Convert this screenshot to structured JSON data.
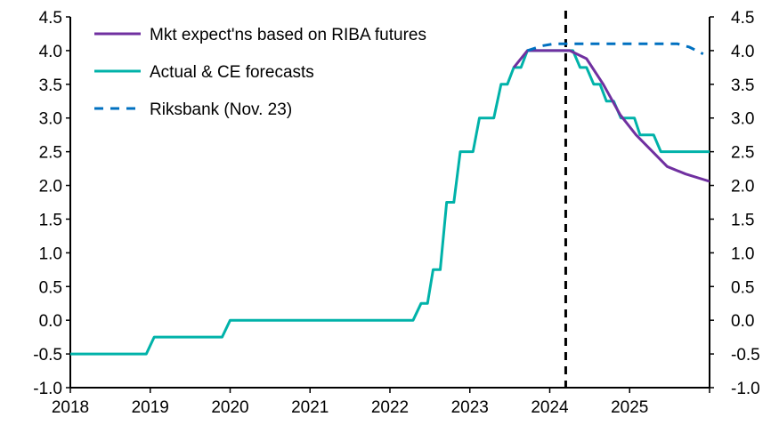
{
  "chart_data": {
    "type": "line",
    "title": "",
    "xlabel": "",
    "ylabel": "",
    "xlim": [
      2018,
      2026
    ],
    "ylim": [
      -1.0,
      4.5
    ],
    "x_ticks": [
      "2018",
      "2019",
      "2020",
      "2021",
      "2022",
      "2023",
      "2024",
      "2025"
    ],
    "y_ticks": [
      "-1.0",
      "-0.5",
      "0.0",
      "0.5",
      "1.0",
      "1.5",
      "2.0",
      "2.5",
      "3.0",
      "3.5",
      "4.0",
      "4.5"
    ],
    "grid": false,
    "legend_position": "top-left",
    "vertical_marker_x": 2024.2,
    "series": [
      {
        "name": "Mkt expect'ns based on RIBA futures",
        "color": "#7030A0",
        "style": "solid",
        "points": [
          [
            2023.55,
            3.75
          ],
          [
            2023.72,
            4.0
          ],
          [
            2024.25,
            4.0
          ],
          [
            2024.46,
            3.88
          ],
          [
            2024.67,
            3.5
          ],
          [
            2024.88,
            3.05
          ],
          [
            2025.08,
            2.75
          ],
          [
            2025.27,
            2.52
          ],
          [
            2025.47,
            2.28
          ],
          [
            2025.7,
            2.17
          ],
          [
            2026.0,
            2.06
          ]
        ]
      },
      {
        "name": "Actual & CE forecasts",
        "color": "#00B2A9",
        "style": "solid",
        "points": [
          [
            2018.0,
            -0.5
          ],
          [
            2018.95,
            -0.5
          ],
          [
            2019.05,
            -0.25
          ],
          [
            2019.9,
            -0.25
          ],
          [
            2020.0,
            0.0
          ],
          [
            2022.29,
            0.0
          ],
          [
            2022.39,
            0.25
          ],
          [
            2022.47,
            0.25
          ],
          [
            2022.54,
            0.75
          ],
          [
            2022.63,
            0.75
          ],
          [
            2022.71,
            1.75
          ],
          [
            2022.8,
            1.75
          ],
          [
            2022.88,
            2.5
          ],
          [
            2023.04,
            2.5
          ],
          [
            2023.12,
            3.0
          ],
          [
            2023.3,
            3.0
          ],
          [
            2023.39,
            3.5
          ],
          [
            2023.47,
            3.5
          ],
          [
            2023.55,
            3.75
          ],
          [
            2023.64,
            3.75
          ],
          [
            2023.72,
            4.0
          ],
          [
            2024.29,
            4.0
          ],
          [
            2024.38,
            3.75
          ],
          [
            2024.46,
            3.75
          ],
          [
            2024.55,
            3.5
          ],
          [
            2024.63,
            3.5
          ],
          [
            2024.71,
            3.25
          ],
          [
            2024.8,
            3.25
          ],
          [
            2024.89,
            3.0
          ],
          [
            2025.06,
            3.0
          ],
          [
            2025.13,
            2.75
          ],
          [
            2025.3,
            2.75
          ],
          [
            2025.39,
            2.5
          ],
          [
            2026.0,
            2.5
          ]
        ]
      },
      {
        "name": "Riksbank (Nov. 23)",
        "color": "#0070C0",
        "style": "dashed",
        "points": [
          [
            2023.72,
            4.0
          ],
          [
            2023.9,
            4.07
          ],
          [
            2024.05,
            4.1
          ],
          [
            2025.6,
            4.1
          ],
          [
            2025.75,
            4.05
          ],
          [
            2025.92,
            3.95
          ]
        ]
      }
    ]
  }
}
